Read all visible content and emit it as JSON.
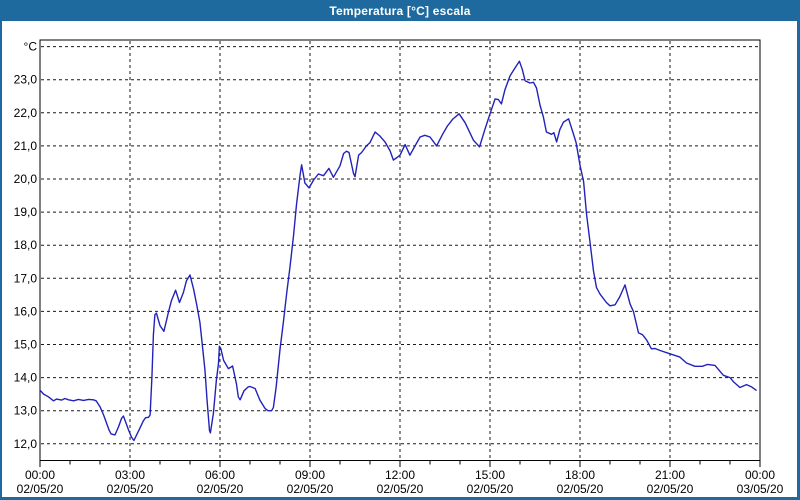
{
  "window": {
    "title": "Temperatura [°C] escala",
    "accent_color": "#1e699e",
    "plot_background": "#ffffff"
  },
  "chart_data": {
    "type": "line",
    "title": "Temperatura [°C] escala",
    "y_unit": "°C",
    "line_color": "#2222bb",
    "grid": "dotted-black",
    "legend": "none",
    "xlim_hours": [
      0,
      24
    ],
    "ylim": [
      11.5,
      24.2
    ],
    "y_axis": {
      "labels": [
        {
          "value": 24,
          "label": "°C"
        },
        {
          "value": 23,
          "label": "23,0"
        },
        {
          "value": 22,
          "label": "22,0"
        },
        {
          "value": 21,
          "label": "21,0"
        },
        {
          "value": 20,
          "label": "20,0"
        },
        {
          "value": 19,
          "label": "19,0"
        },
        {
          "value": 18,
          "label": "18,0"
        },
        {
          "value": 17,
          "label": "17,0"
        },
        {
          "value": 16,
          "label": "16,0"
        },
        {
          "value": 15,
          "label": "15,0"
        },
        {
          "value": 14,
          "label": "14,0"
        },
        {
          "value": 13,
          "label": "13,0"
        },
        {
          "value": 12,
          "label": "12,0"
        }
      ]
    },
    "x_axis": {
      "minor_tick_hours": 1,
      "ticks": [
        {
          "hour": 0,
          "time": "00:00",
          "date": "02/05/20"
        },
        {
          "hour": 3,
          "time": "03:00",
          "date": "02/05/20"
        },
        {
          "hour": 6,
          "time": "06:00",
          "date": "02/05/20"
        },
        {
          "hour": 9,
          "time": "09:00",
          "date": "02/05/20"
        },
        {
          "hour": 12,
          "time": "12:00",
          "date": "02/05/20"
        },
        {
          "hour": 15,
          "time": "15:00",
          "date": "02/05/20"
        },
        {
          "hour": 18,
          "time": "18:00",
          "date": "02/05/20"
        },
        {
          "hour": 21,
          "time": "21:00",
          "date": "02/05/20"
        },
        {
          "hour": 24,
          "time": "00:00",
          "date": "03/05/20"
        }
      ]
    },
    "series": [
      {
        "name": "Temperatura",
        "color": "#2222bb",
        "points": [
          [
            0.0,
            13.62
          ],
          [
            0.12,
            13.5
          ],
          [
            0.28,
            13.42
          ],
          [
            0.45,
            13.3
          ],
          [
            0.55,
            13.35
          ],
          [
            0.72,
            13.32
          ],
          [
            0.83,
            13.37
          ],
          [
            0.95,
            13.33
          ],
          [
            1.12,
            13.3
          ],
          [
            1.28,
            13.34
          ],
          [
            1.45,
            13.31
          ],
          [
            1.62,
            13.34
          ],
          [
            1.78,
            13.33
          ],
          [
            1.87,
            13.3
          ],
          [
            2.0,
            13.12
          ],
          [
            2.12,
            12.87
          ],
          [
            2.22,
            12.62
          ],
          [
            2.3,
            12.42
          ],
          [
            2.37,
            12.3
          ],
          [
            2.5,
            12.27
          ],
          [
            2.62,
            12.52
          ],
          [
            2.72,
            12.77
          ],
          [
            2.78,
            12.84
          ],
          [
            2.85,
            12.67
          ],
          [
            2.95,
            12.42
          ],
          [
            3.05,
            12.2
          ],
          [
            3.13,
            12.1
          ],
          [
            3.22,
            12.27
          ],
          [
            3.33,
            12.47
          ],
          [
            3.45,
            12.7
          ],
          [
            3.52,
            12.79
          ],
          [
            3.62,
            12.8
          ],
          [
            3.67,
            12.87
          ],
          [
            3.73,
            14.0
          ],
          [
            3.78,
            15.3
          ],
          [
            3.83,
            15.9
          ],
          [
            3.88,
            15.95
          ],
          [
            4.0,
            15.57
          ],
          [
            4.13,
            15.4
          ],
          [
            4.28,
            15.97
          ],
          [
            4.38,
            16.32
          ],
          [
            4.52,
            16.64
          ],
          [
            4.65,
            16.27
          ],
          [
            4.78,
            16.57
          ],
          [
            4.88,
            16.92
          ],
          [
            5.0,
            17.1
          ],
          [
            5.12,
            16.67
          ],
          [
            5.22,
            16.22
          ],
          [
            5.33,
            15.67
          ],
          [
            5.42,
            14.91
          ],
          [
            5.5,
            14.21
          ],
          [
            5.57,
            13.3
          ],
          [
            5.65,
            12.4
          ],
          [
            5.68,
            12.33
          ],
          [
            5.78,
            12.92
          ],
          [
            5.88,
            13.93
          ],
          [
            5.95,
            14.43
          ],
          [
            5.98,
            14.95
          ],
          [
            6.03,
            14.87
          ],
          [
            6.12,
            14.52
          ],
          [
            6.28,
            14.27
          ],
          [
            6.42,
            14.35
          ],
          [
            6.55,
            13.8
          ],
          [
            6.61,
            13.42
          ],
          [
            6.67,
            13.33
          ],
          [
            6.8,
            13.6
          ],
          [
            6.94,
            13.72
          ],
          [
            7.0,
            13.73
          ],
          [
            7.17,
            13.67
          ],
          [
            7.33,
            13.32
          ],
          [
            7.5,
            13.07
          ],
          [
            7.6,
            13.0
          ],
          [
            7.72,
            13.0
          ],
          [
            7.78,
            13.1
          ],
          [
            7.87,
            13.7
          ],
          [
            8.0,
            14.85
          ],
          [
            8.12,
            15.73
          ],
          [
            8.22,
            16.53
          ],
          [
            8.33,
            17.32
          ],
          [
            8.45,
            18.28
          ],
          [
            8.55,
            19.23
          ],
          [
            8.67,
            20.13
          ],
          [
            8.72,
            20.43
          ],
          [
            8.83,
            19.88
          ],
          [
            8.97,
            19.73
          ],
          [
            9.12,
            19.97
          ],
          [
            9.28,
            20.15
          ],
          [
            9.45,
            20.1
          ],
          [
            9.63,
            20.32
          ],
          [
            9.78,
            20.05
          ],
          [
            10.0,
            20.4
          ],
          [
            10.12,
            20.77
          ],
          [
            10.22,
            20.84
          ],
          [
            10.3,
            20.8
          ],
          [
            10.45,
            20.17
          ],
          [
            10.5,
            20.07
          ],
          [
            10.62,
            20.72
          ],
          [
            10.72,
            20.8
          ],
          [
            10.88,
            21.0
          ],
          [
            11.0,
            21.1
          ],
          [
            11.17,
            21.42
          ],
          [
            11.33,
            21.3
          ],
          [
            11.5,
            21.12
          ],
          [
            11.67,
            20.85
          ],
          [
            11.78,
            20.57
          ],
          [
            11.9,
            20.65
          ],
          [
            12.0,
            20.72
          ],
          [
            12.17,
            21.04
          ],
          [
            12.33,
            20.72
          ],
          [
            12.5,
            21.0
          ],
          [
            12.67,
            21.27
          ],
          [
            12.83,
            21.32
          ],
          [
            13.0,
            21.27
          ],
          [
            13.22,
            21.0
          ],
          [
            13.42,
            21.35
          ],
          [
            13.58,
            21.6
          ],
          [
            13.75,
            21.8
          ],
          [
            13.97,
            21.97
          ],
          [
            14.17,
            21.7
          ],
          [
            14.45,
            21.17
          ],
          [
            14.65,
            20.97
          ],
          [
            14.83,
            21.5
          ],
          [
            15.0,
            21.97
          ],
          [
            15.17,
            22.42
          ],
          [
            15.28,
            22.4
          ],
          [
            15.38,
            22.27
          ],
          [
            15.5,
            22.7
          ],
          [
            15.67,
            23.12
          ],
          [
            15.83,
            23.35
          ],
          [
            15.98,
            23.56
          ],
          [
            16.08,
            23.3
          ],
          [
            16.17,
            22.97
          ],
          [
            16.33,
            22.9
          ],
          [
            16.45,
            22.92
          ],
          [
            16.55,
            22.75
          ],
          [
            16.67,
            22.22
          ],
          [
            16.78,
            21.87
          ],
          [
            16.88,
            21.42
          ],
          [
            17.05,
            21.35
          ],
          [
            17.13,
            21.4
          ],
          [
            17.22,
            21.12
          ],
          [
            17.33,
            21.5
          ],
          [
            17.45,
            21.72
          ],
          [
            17.62,
            21.82
          ],
          [
            17.75,
            21.45
          ],
          [
            17.87,
            21.1
          ],
          [
            18.0,
            20.42
          ],
          [
            18.12,
            19.92
          ],
          [
            18.22,
            18.92
          ],
          [
            18.33,
            18.12
          ],
          [
            18.45,
            17.22
          ],
          [
            18.55,
            16.72
          ],
          [
            18.67,
            16.52
          ],
          [
            18.88,
            16.27
          ],
          [
            19.0,
            16.17
          ],
          [
            19.17,
            16.2
          ],
          [
            19.33,
            16.45
          ],
          [
            19.5,
            16.8
          ],
          [
            19.67,
            16.22
          ],
          [
            19.78,
            16.0
          ],
          [
            19.95,
            15.35
          ],
          [
            20.08,
            15.3
          ],
          [
            20.22,
            15.14
          ],
          [
            20.38,
            14.87
          ],
          [
            20.5,
            14.88
          ],
          [
            20.67,
            14.82
          ],
          [
            21.0,
            14.72
          ],
          [
            21.33,
            14.62
          ],
          [
            21.55,
            14.44
          ],
          [
            21.83,
            14.34
          ],
          [
            22.08,
            14.34
          ],
          [
            22.25,
            14.4
          ],
          [
            22.5,
            14.37
          ],
          [
            22.78,
            14.07
          ],
          [
            23.0,
            14.0
          ],
          [
            23.12,
            13.87
          ],
          [
            23.33,
            13.7
          ],
          [
            23.55,
            13.79
          ],
          [
            23.72,
            13.72
          ],
          [
            23.87,
            13.62
          ]
        ]
      }
    ]
  }
}
